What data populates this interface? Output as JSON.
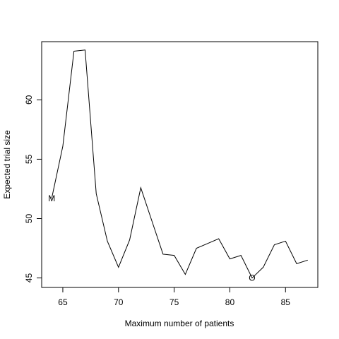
{
  "chart_data": {
    "type": "line",
    "title": "",
    "xlabel": "Maximum number of patients",
    "ylabel": "Expected trial size",
    "xlim": [
      63.1,
      87.9
    ],
    "ylim": [
      44.2,
      64.9
    ],
    "x_ticks": [
      65,
      70,
      75,
      80,
      85
    ],
    "y_ticks": [
      45,
      50,
      55,
      60
    ],
    "grid": false,
    "legend": "none",
    "line_color": "#000000",
    "series": [
      {
        "x": [
          64,
          65,
          66,
          67,
          68,
          69,
          70,
          71,
          72,
          73,
          74,
          75,
          76,
          77,
          78,
          79,
          80,
          81,
          82,
          83,
          84,
          85,
          86,
          87
        ],
        "values": [
          51.7,
          56.1,
          64.1,
          64.2,
          52.1,
          48.1,
          45.9,
          48.2,
          52.6,
          49.8,
          47.0,
          46.9,
          45.3,
          47.5,
          47.9,
          48.3,
          46.6,
          46.9,
          45.0,
          45.9,
          47.8,
          48.1,
          46.2,
          46.5
        ]
      }
    ],
    "annotations": [
      {
        "text": "M",
        "x": 64,
        "y": 51.7
      },
      {
        "text": "O",
        "x": 82,
        "y": 45.0
      }
    ]
  }
}
